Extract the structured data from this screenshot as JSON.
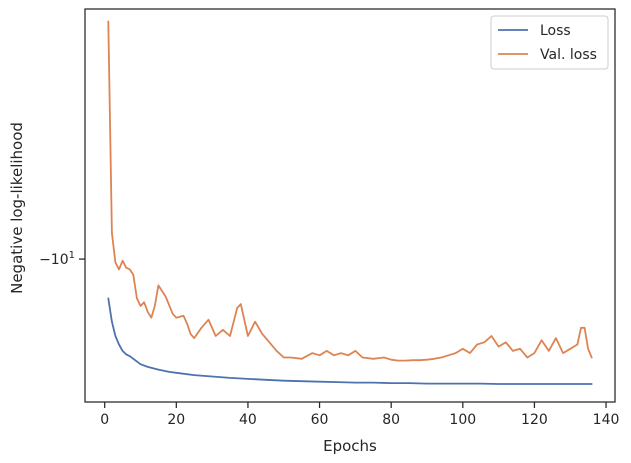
{
  "chart_data": {
    "type": "line",
    "xlabel": "Epochs",
    "ylabel": "Negative log-likelihood",
    "xlim": [
      -5.5,
      142.5
    ],
    "ylim": [
      -6.5,
      -20.5
    ],
    "y_scale": "symlog (inverted, more negative at top)",
    "x_ticks": [
      0,
      20,
      40,
      60,
      80,
      100,
      120,
      140
    ],
    "y_ticks": [
      {
        "value": -10,
        "label": "−10",
        "exponent": "1"
      }
    ],
    "legend_position": "top-right",
    "grid": false,
    "series": [
      {
        "name": "Loss",
        "color": "#4c72b0",
        "x": [
          1,
          2,
          3,
          4,
          5,
          6,
          7,
          8,
          10,
          12,
          15,
          18,
          20,
          25,
          30,
          35,
          40,
          45,
          50,
          55,
          60,
          65,
          70,
          75,
          80,
          85,
          90,
          95,
          100,
          105,
          110,
          115,
          120,
          125,
          130,
          136
        ],
        "y": [
          -8.9,
          -8.3,
          -7.95,
          -7.75,
          -7.6,
          -7.52,
          -7.48,
          -7.42,
          -7.3,
          -7.24,
          -7.18,
          -7.13,
          -7.11,
          -7.06,
          -7.03,
          -7.0,
          -6.98,
          -6.96,
          -6.94,
          -6.93,
          -6.92,
          -6.91,
          -6.9,
          -6.9,
          -6.89,
          -6.89,
          -6.88,
          -6.88,
          -6.88,
          -6.88,
          -6.87,
          -6.87,
          -6.87,
          -6.87,
          -6.87,
          -6.87
        ]
      },
      {
        "name": "Val. loss",
        "color": "#dd8452",
        "x": [
          1,
          2,
          3,
          4,
          5,
          6,
          7,
          8,
          9,
          10,
          11,
          12,
          13,
          14,
          15,
          17,
          19,
          20,
          22,
          23,
          24,
          25,
          27,
          29,
          31,
          33,
          35,
          37,
          38,
          40,
          42,
          44,
          46,
          48,
          50,
          52,
          55,
          58,
          60,
          62,
          64,
          66,
          68,
          70,
          72,
          75,
          78,
          80,
          82,
          84,
          86,
          88,
          90,
          92,
          94,
          96,
          98,
          100,
          102,
          104,
          106,
          108,
          110,
          112,
          114,
          116,
          118,
          120,
          122,
          124,
          126,
          128,
          130,
          132,
          133,
          134,
          135,
          136
        ],
        "y": [
          -19.8,
          -10.8,
          -9.9,
          -9.7,
          -9.95,
          -9.75,
          -9.7,
          -9.55,
          -8.9,
          -8.7,
          -8.8,
          -8.55,
          -8.4,
          -8.7,
          -9.25,
          -8.95,
          -8.5,
          -8.4,
          -8.45,
          -8.25,
          -8.0,
          -7.9,
          -8.15,
          -8.35,
          -7.95,
          -8.1,
          -7.95,
          -8.65,
          -8.75,
          -7.95,
          -8.3,
          -8.0,
          -7.8,
          -7.6,
          -7.45,
          -7.45,
          -7.42,
          -7.55,
          -7.5,
          -7.6,
          -7.5,
          -7.55,
          -7.5,
          -7.6,
          -7.45,
          -7.42,
          -7.45,
          -7.4,
          -7.38,
          -7.38,
          -7.39,
          -7.39,
          -7.4,
          -7.42,
          -7.45,
          -7.5,
          -7.55,
          -7.65,
          -7.55,
          -7.75,
          -7.8,
          -7.95,
          -7.7,
          -7.8,
          -7.6,
          -7.65,
          -7.45,
          -7.55,
          -7.85,
          -7.6,
          -7.9,
          -7.55,
          -7.65,
          -7.75,
          -8.15,
          -8.15,
          -7.65,
          -7.45
        ]
      }
    ]
  }
}
